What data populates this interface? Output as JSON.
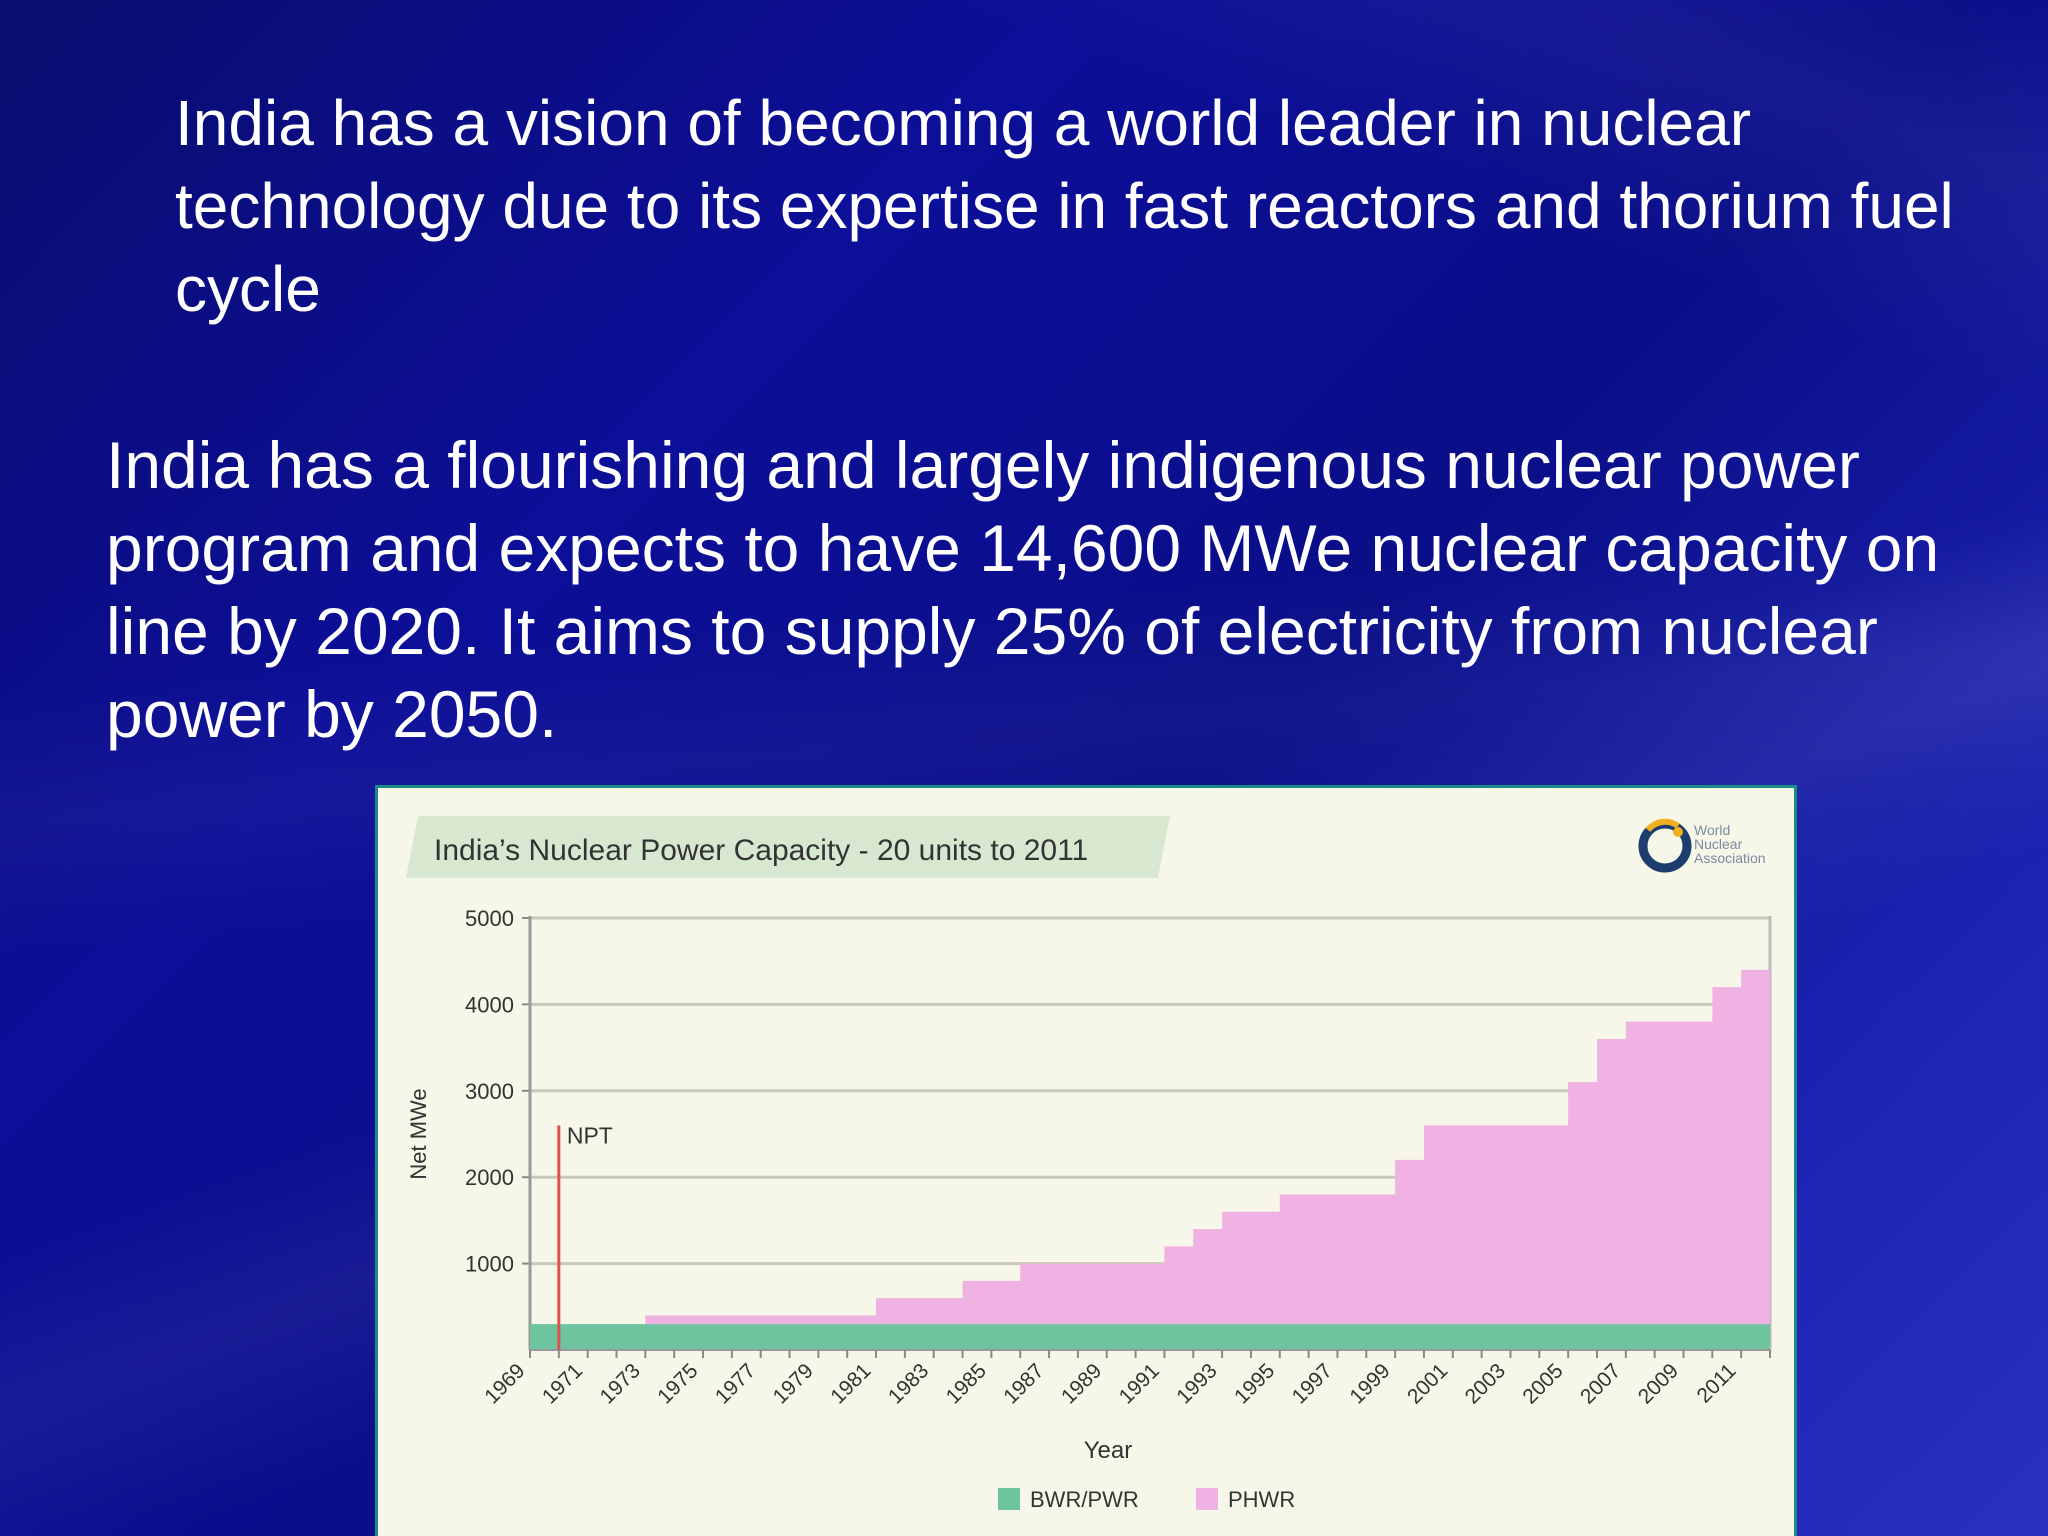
{
  "slide": {
    "para1": "India has a vision of becoming a world leader in nuclear technology due to its expertise in fast reactors and thorium fuel cycle",
    "para2": "India has a flourishing and largely indigenous nuclear power program and expects to have 14,600 MWe nuclear capacity on line by 2020. It aims to supply 25% of electricity from nuclear power by 2050."
  },
  "logo": {
    "line1": "World",
    "line2": "Nuclear",
    "line3": "Association"
  },
  "colors": {
    "bwr": "#6fc4a0",
    "phwr": "#f0b2e2",
    "npt": "#d9534f",
    "title_band": "#d8e8d0",
    "plot_bg": "#f6f7e8",
    "grid": "#c8c8b8"
  },
  "chart_data": {
    "type": "area",
    "title": "India’s Nuclear Power Capacity - 20 units to 2011",
    "xlabel": "Year",
    "ylabel": "Net MWe",
    "ylim": [
      0,
      5000
    ],
    "xlim": [
      1969,
      2012
    ],
    "yticks": [
      1000,
      2000,
      3000,
      4000,
      5000
    ],
    "ytick_labels": [
      "1000",
      "2000",
      "3000",
      "4000",
      "5000"
    ],
    "xtick_labels": [
      "1969",
      "1971",
      "1973",
      "1975",
      "1977",
      "1979",
      "1981",
      "1983",
      "1985",
      "1987",
      "1989",
      "1991",
      "1993",
      "1995",
      "1997",
      "1999",
      "2001",
      "2003",
      "2005",
      "2007",
      "2009",
      "2011"
    ],
    "legend": [
      "BWR/PWR",
      "PHWR"
    ],
    "legend_position": "bottom",
    "annotation": {
      "label": "NPT",
      "x": 1970,
      "y_top": 2600
    },
    "grid": true,
    "series": [
      {
        "name": "BWR/PWR",
        "steps": [
          [
            1969,
            300
          ],
          [
            2012,
            300
          ]
        ]
      },
      {
        "name": "PHWR",
        "steps": [
          [
            1969,
            0
          ],
          [
            1973,
            100
          ],
          [
            1981,
            300
          ],
          [
            1984,
            500
          ],
          [
            1986,
            700
          ],
          [
            1991,
            900
          ],
          [
            1992,
            1100
          ],
          [
            1993,
            1300
          ],
          [
            1995,
            1500
          ],
          [
            1999,
            1900
          ],
          [
            2000,
            2300
          ],
          [
            2005,
            2800
          ],
          [
            2006,
            3300
          ],
          [
            2007,
            3500
          ],
          [
            2010,
            3900
          ],
          [
            2011,
            4100
          ]
        ]
      }
    ]
  }
}
